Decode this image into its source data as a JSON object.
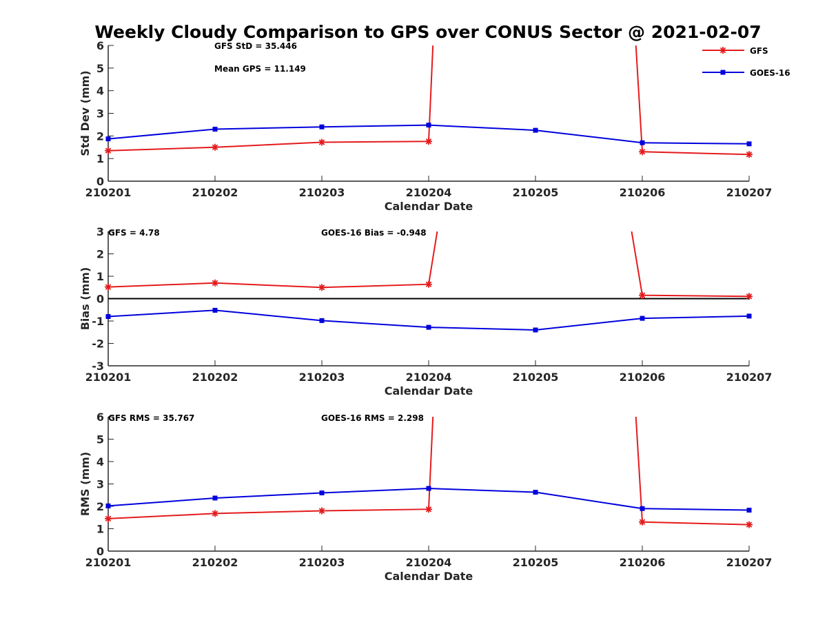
{
  "figure": {
    "title": "Weekly Cloudy Comparison to GPS over CONUS Sector @ 2021-02-07",
    "legend": {
      "placement": "top-right",
      "entries": [
        {
          "label": "GFS",
          "color": "#e41a1c",
          "marker": "asterisk"
        },
        {
          "label": "GOES-16",
          "color": "#0000dd",
          "marker": "square"
        }
      ]
    }
  },
  "chart_data": [
    {
      "type": "line",
      "title": "",
      "xlabel": "Calendar Date",
      "ylabel": "Std Dev (mm)",
      "ylim": [
        0,
        6
      ],
      "yticks": [
        0,
        1,
        2,
        3,
        4,
        5,
        6
      ],
      "x": [
        "210201",
        "210202",
        "210203",
        "210204",
        "210205",
        "210206",
        "210207"
      ],
      "zero_line": false,
      "annotations": [
        "GFS StD = 35.446",
        "Mean GPS = 11.149"
      ],
      "series": [
        {
          "name": "GFS",
          "color": "#e41a1c",
          "marker": "asterisk",
          "segments": [
            {
              "points": [
                [
                  0,
                  1.35
                ],
                [
                  1,
                  1.5
                ],
                [
                  2,
                  1.72
                ],
                [
                  3,
                  1.76
                ],
                [
                  3.04,
                  6
                ]
              ]
            },
            {
              "points": [
                [
                  4.94,
                  6
                ],
                [
                  5,
                  1.3
                ],
                [
                  6,
                  1.18
                ]
              ]
            }
          ]
        },
        {
          "name": "GOES-16",
          "color": "#0000dd",
          "marker": "square",
          "segments": [
            {
              "points": [
                [
                  0,
                  1.87
                ],
                [
                  1,
                  2.3
                ],
                [
                  2,
                  2.4
                ],
                [
                  3,
                  2.48
                ],
                [
                  4,
                  2.25
                ],
                [
                  5,
                  1.7
                ],
                [
                  6,
                  1.65
                ]
              ]
            }
          ]
        }
      ]
    },
    {
      "type": "line",
      "title": "",
      "xlabel": "Calendar Date",
      "ylabel": "Bias (mm)",
      "ylim": [
        -3,
        3
      ],
      "yticks": [
        -3,
        -2,
        -1,
        0,
        1,
        2,
        3
      ],
      "x": [
        "210201",
        "210202",
        "210203",
        "210204",
        "210205",
        "210206",
        "210207"
      ],
      "zero_line": true,
      "annotations": [
        "GFS = 4.78",
        "GOES-16 Bias  = -0.948"
      ],
      "series": [
        {
          "name": "GFS",
          "color": "#e41a1c",
          "marker": "asterisk",
          "segments": [
            {
              "points": [
                [
                  0,
                  0.52
                ],
                [
                  1,
                  0.7
                ],
                [
                  2,
                  0.5
                ],
                [
                  3,
                  0.64
                ],
                [
                  3.08,
                  3
                ]
              ]
            },
            {
              "points": [
                [
                  4.9,
                  3
                ],
                [
                  5,
                  0.15
                ],
                [
                  6,
                  0.1
                ]
              ]
            }
          ]
        },
        {
          "name": "GOES-16",
          "color": "#0000dd",
          "marker": "square",
          "segments": [
            {
              "points": [
                [
                  0,
                  -0.8
                ],
                [
                  1,
                  -0.52
                ],
                [
                  2,
                  -0.98
                ],
                [
                  3,
                  -1.28
                ],
                [
                  4,
                  -1.4
                ],
                [
                  5,
                  -0.88
                ],
                [
                  6,
                  -0.78
                ]
              ]
            }
          ]
        }
      ]
    },
    {
      "type": "line",
      "title": "",
      "xlabel": "Calendar Date",
      "ylabel": "RMS (mm)",
      "ylim": [
        0,
        6
      ],
      "yticks": [
        0,
        1,
        2,
        3,
        4,
        5,
        6
      ],
      "x": [
        "210201",
        "210202",
        "210203",
        "210204",
        "210205",
        "210206",
        "210207"
      ],
      "zero_line": false,
      "annotations": [
        "GFS RMS = 35.767",
        "GOES-16 RMS = 2.298"
      ],
      "series": [
        {
          "name": "GFS",
          "color": "#e41a1c",
          "marker": "asterisk",
          "segments": [
            {
              "points": [
                [
                  0,
                  1.45
                ],
                [
                  1,
                  1.68
                ],
                [
                  2,
                  1.8
                ],
                [
                  3,
                  1.87
                ],
                [
                  3.04,
                  6
                ]
              ]
            },
            {
              "points": [
                [
                  4.94,
                  6
                ],
                [
                  5,
                  1.3
                ],
                [
                  6,
                  1.18
                ]
              ]
            }
          ]
        },
        {
          "name": "GOES-16",
          "color": "#0000dd",
          "marker": "square",
          "segments": [
            {
              "points": [
                [
                  0,
                  2.02
                ],
                [
                  1,
                  2.37
                ],
                [
                  2,
                  2.6
                ],
                [
                  3,
                  2.8
                ],
                [
                  4,
                  2.63
                ],
                [
                  5,
                  1.9
                ],
                [
                  6,
                  1.83
                ]
              ]
            }
          ]
        }
      ]
    }
  ]
}
